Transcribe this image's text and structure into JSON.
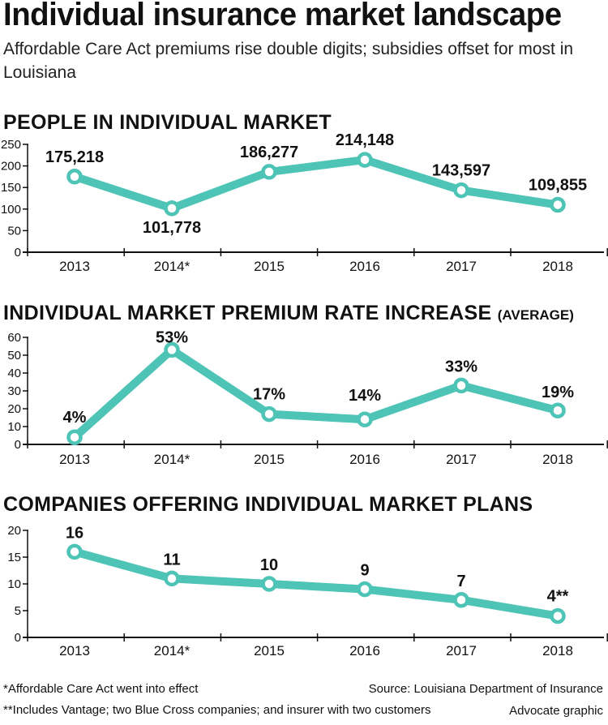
{
  "header": {
    "title": "Individual insurance market landscape",
    "subtitle": "Affordable Care Act premiums rise double digits; subsidies offset for most in Louisiana"
  },
  "colors": {
    "line": "#4dc4b6",
    "axis": "#111111",
    "text": "#111111"
  },
  "chart_data": [
    {
      "type": "line",
      "title": "PEOPLE IN INDIVIDUAL MARKET",
      "title_suffix": "",
      "categories": [
        "2013",
        "2014*",
        "2015",
        "2016",
        "2017",
        "2018"
      ],
      "values": [
        175218,
        101778,
        186277,
        214148,
        143597,
        109855
      ],
      "data_labels": [
        "175,218",
        "101,778",
        "186,277",
        "214,148",
        "143,597",
        "109,855"
      ],
      "yticks": [
        "0",
        "50",
        "100",
        "150",
        "200",
        "250"
      ],
      "ylim": [
        0,
        250000
      ],
      "y_unit": "thousands"
    },
    {
      "type": "line",
      "title": "INDIVIDUAL MARKET PREMIUM RATE INCREASE",
      "title_suffix": "(AVERAGE)",
      "categories": [
        "2013",
        "2014*",
        "2015",
        "2016",
        "2017",
        "2018"
      ],
      "values": [
        4,
        53,
        17,
        14,
        33,
        19
      ],
      "data_labels": [
        "4%",
        "53%",
        "17%",
        "14%",
        "33%",
        "19%"
      ],
      "yticks": [
        "0",
        "10",
        "20",
        "30",
        "40",
        "50",
        "60"
      ],
      "ylim": [
        0,
        60
      ]
    },
    {
      "type": "line",
      "title": "COMPANIES OFFERING INDIVIDUAL MARKET PLANS",
      "title_suffix": "",
      "categories": [
        "2013",
        "2014*",
        "2015",
        "2016",
        "2017",
        "2018"
      ],
      "values": [
        16,
        11,
        10,
        9,
        7,
        4
      ],
      "data_labels": [
        "16",
        "11",
        "10",
        "9",
        "7",
        "4**"
      ],
      "yticks": [
        "0",
        "5",
        "10",
        "15",
        "20"
      ],
      "ylim": [
        0,
        20
      ]
    }
  ],
  "footer": {
    "note1": "*Affordable Care Act went into effect",
    "note2": "**Includes Vantage; two Blue Cross companies; and insurer with two customers",
    "source": "Source: Louisiana Department of Insurance",
    "credit": "Advocate graphic"
  }
}
